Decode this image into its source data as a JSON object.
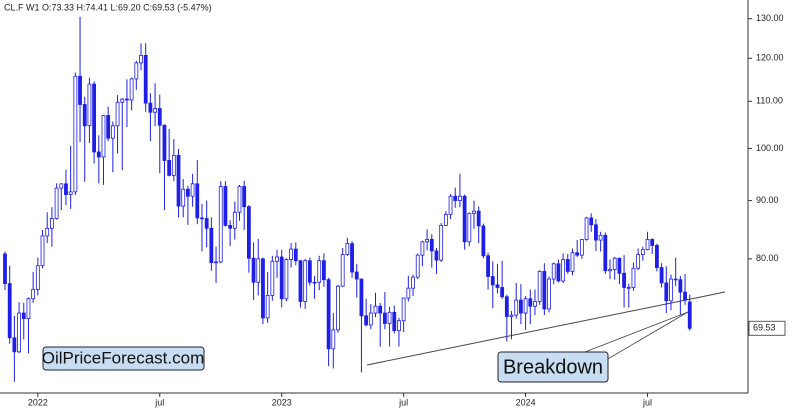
{
  "chart_data": {
    "type": "candlestick",
    "legend_text": "CL.F  W1  O:73.33  H:74.41  L:69.20  C:69.53  (-5.47%)",
    "watermark": "OilPriceForecast.com",
    "annotation": "Breakdown",
    "color": "#1f1fe6",
    "log_scale": true,
    "ylim": [
      61,
      135
    ],
    "yticks": [
      {
        "value": 80,
        "label": "80.00"
      },
      {
        "value": 90,
        "label": "90.00"
      },
      {
        "value": 100,
        "label": "100.00"
      },
      {
        "value": 110,
        "label": "110.00"
      },
      {
        "value": 120,
        "label": "120.00"
      },
      {
        "value": 130,
        "label": "130.00"
      }
    ],
    "categories": [
      null,
      null,
      null,
      null,
      null,
      null,
      null,
      "2022",
      null,
      null,
      null,
      null,
      null,
      null,
      null,
      null,
      null,
      null,
      null,
      null,
      null,
      null,
      null,
      null,
      null,
      null,
      null,
      null,
      null,
      null,
      null,
      null,
      null,
      "jul",
      null,
      null,
      null,
      null,
      null,
      null,
      null,
      null,
      null,
      null,
      null,
      null,
      null,
      null,
      null,
      null,
      null,
      null,
      null,
      null,
      null,
      null,
      null,
      null,
      null,
      "2023",
      null,
      null,
      null,
      null,
      null,
      null,
      null,
      null,
      null,
      null,
      null,
      null,
      null,
      null,
      null,
      null,
      null,
      null,
      null,
      null,
      null,
      null,
      null,
      null,
      null,
      "jul",
      null,
      null,
      null,
      null,
      null,
      null,
      null,
      null,
      null,
      null,
      null,
      null,
      null,
      null,
      null,
      null,
      null,
      null,
      null,
      null,
      null,
      null,
      null,
      null,
      null,
      "2024",
      null,
      null,
      null,
      null,
      null,
      null,
      null,
      null,
      null,
      null,
      null,
      null,
      null,
      null,
      null,
      null,
      null,
      null,
      null,
      null,
      null,
      null,
      null,
      null,
      null,
      "jul",
      null,
      null,
      null,
      null,
      null,
      null,
      null,
      null,
      null
    ],
    "open": [
      80.8,
      76.1,
      68.2,
      66.3,
      71.7,
      70.9,
      73.8,
      75.2,
      78.9,
      83.8,
      85.1,
      86.8,
      92.3,
      93.1,
      91.1,
      91.6,
      115.7,
      109.3,
      104.7,
      113.9,
      99.3,
      98.3,
      106.9,
      102.1,
      104.7,
      109.8,
      110.5,
      110.3,
      115.1,
      118.9,
      120.7,
      109.6,
      107.6,
      108.4,
      104.8,
      97.6,
      94.7,
      98.6,
      89.0,
      92.1,
      90.8,
      93.1,
      86.9,
      86.8,
      85.1,
      79.4,
      79.5,
      92.6,
      85.6,
      85.1,
      87.9,
      92.6,
      88.9,
      80.1,
      76.3,
      80.0,
      71.0,
      74.3,
      79.6,
      80.3,
      73.8,
      79.9,
      81.6,
      79.7,
      73.4,
      79.7,
      76.3,
      76.3,
      79.7,
      76.7,
      66.7,
      69.3,
      75.7,
      80.7,
      82.5,
      77.9,
      76.8,
      71.3,
      70.0,
      71.7,
      72.7,
      71.7,
      70.2,
      71.8,
      69.2,
      70.6,
      73.9,
      75.4,
      77.1,
      80.6,
      82.8,
      83.2,
      81.3,
      79.8,
      85.6,
      87.5,
      90.8,
      90.0,
      90.8,
      82.8,
      87.7,
      88.1,
      85.5,
      80.5,
      77.2,
      75.9,
      75.5,
      74.1,
      71.2,
      71.4,
      73.6,
      71.7,
      73.8,
      72.7,
      73.4,
      78.0,
      72.3,
      76.8,
      79.2,
      76.5,
      79.9,
      78.0,
      81.0,
      80.6,
      83.2,
      86.9,
      85.7,
      83.1,
      83.9,
      78.1,
      78.3,
      80.1,
      77.7,
      75.5,
      75.5,
      78.5,
      80.7,
      81.5,
      83.2,
      82.2,
      78.6,
      76.2,
      73.5,
      76.8,
      76.7,
      74.8,
      73.33
    ],
    "high": [
      81.2,
      78.9,
      71.3,
      73.3,
      73.2,
      74.0,
      77.9,
      80.2,
      84.8,
      87.9,
      88.8,
      93.2,
      93.2,
      95.8,
      100.5,
      116.6,
      130.5,
      111.0,
      115.4,
      114.5,
      102.7,
      107.0,
      108.8,
      105.6,
      111.4,
      110.7,
      115.0,
      115.4,
      119.4,
      123.7,
      123.7,
      111.8,
      114.1,
      111.5,
      105.0,
      104.0,
      101.9,
      99.9,
      94.0,
      92.7,
      95.0,
      97.7,
      89.4,
      90.0,
      87.0,
      82.0,
      93.6,
      93.6,
      86.5,
      89.8,
      92.9,
      93.7,
      89.2,
      82.7,
      83.3,
      80.2,
      77.9,
      80.5,
      81.5,
      81.5,
      80.1,
      82.6,
      82.7,
      79.8,
      80.0,
      80.2,
      77.3,
      80.5,
      80.9,
      77.0,
      71.7,
      75.9,
      81.8,
      83.5,
      82.9,
      79.2,
      76.9,
      73.8,
      73.0,
      74.7,
      73.2,
      74.8,
      72.6,
      72.8,
      71.0,
      74.0,
      77.3,
      77.5,
      80.9,
      83.0,
      84.9,
      84.1,
      81.8,
      86.0,
      88.1,
      91.2,
      92.4,
      95.0,
      91.1,
      87.9,
      90.0,
      88.9,
      85.9,
      81.0,
      79.6,
      79.2,
      79.7,
      74.4,
      72.0,
      76.2,
      76.0,
      74.2,
      75.2,
      75.2,
      78.2,
      79.3,
      77.2,
      79.4,
      79.9,
      80.9,
      80.8,
      81.7,
      83.1,
      83.3,
      87.1,
      87.7,
      86.7,
      84.5,
      84.4,
      79.9,
      80.3,
      80.2,
      80.6,
      76.1,
      79.4,
      81.7,
      82.0,
      84.5,
      83.4,
      82.5,
      79.3,
      78.8,
      77.5,
      80.2,
      77.3,
      77.6,
      74.41
    ],
    "low": [
      75.1,
      67.4,
      62.4,
      66.1,
      68.0,
      66.1,
      73.2,
      74.3,
      78.5,
      82.6,
      82.0,
      86.6,
      88.3,
      89.2,
      88.5,
      91.0,
      101.3,
      93.5,
      101.1,
      97.0,
      93.2,
      92.9,
      101.5,
      95.3,
      99.0,
      95.7,
      104.4,
      108.0,
      112.6,
      117.1,
      107.7,
      101.5,
      104.6,
      95.1,
      88.3,
      94.5,
      93.6,
      87.0,
      87.0,
      85.7,
      88.9,
      85.8,
      81.2,
      81.9,
      78.1,
      76.2,
      79.3,
      85.4,
      82.1,
      83.2,
      86.4,
      84.8,
      77.8,
      73.6,
      74.3,
      70.1,
      70.3,
      73.5,
      77.0,
      72.5,
      73.4,
      78.6,
      79.0,
      72.5,
      72.3,
      75.8,
      73.8,
      75.1,
      75.6,
      64.4,
      64.1,
      68.9,
      75.6,
      80.5,
      77.0,
      74.0,
      63.6,
      69.8,
      69.4,
      71.1,
      67.0,
      69.4,
      67.0,
      68.8,
      67.0,
      69.0,
      73.4,
      74.2,
      76.8,
      78.8,
      81.4,
      78.6,
      77.6,
      79.5,
      85.5,
      86.7,
      88.7,
      88.8,
      81.5,
      82.1,
      85.0,
      82.6,
      80.1,
      75.2,
      72.4,
      74.6,
      73.8,
      67.7,
      68.0,
      70.9,
      70.1,
      69.3,
      70.1,
      71.4,
      72.9,
      71.4,
      71.8,
      76.0,
      76.3,
      76.2,
      77.6,
      77.4,
      80.3,
      80.0,
      83.0,
      84.5,
      81.3,
      81.2,
      77.6,
      76.8,
      76.7,
      76.0,
      72.5,
      72.5,
      75.0,
      78.2,
      79.7,
      81.4,
      80.8,
      78.0,
      75.5,
      71.7,
      72.1,
      75.7,
      71.5,
      72.9,
      69.2
    ],
    "close": [
      76.1,
      68.2,
      66.3,
      71.7,
      70.9,
      73.8,
      75.2,
      78.9,
      83.8,
      85.1,
      86.8,
      92.3,
      93.1,
      91.1,
      91.6,
      115.7,
      109.3,
      104.7,
      113.9,
      99.3,
      98.3,
      106.9,
      102.1,
      104.7,
      109.8,
      110.5,
      110.3,
      115.1,
      118.9,
      120.7,
      109.6,
      107.6,
      108.4,
      104.8,
      97.6,
      94.7,
      98.6,
      89.0,
      92.1,
      90.8,
      93.1,
      86.9,
      86.8,
      85.1,
      79.4,
      79.5,
      92.6,
      85.6,
      85.1,
      87.9,
      92.6,
      88.9,
      80.1,
      76.3,
      80.0,
      71.0,
      74.3,
      79.6,
      80.3,
      73.8,
      79.9,
      81.6,
      79.7,
      73.4,
      79.7,
      76.3,
      76.3,
      79.7,
      76.7,
      66.7,
      69.3,
      75.7,
      80.7,
      82.5,
      77.9,
      76.8,
      71.3,
      70.0,
      71.7,
      72.7,
      71.7,
      70.2,
      71.8,
      69.2,
      70.6,
      73.9,
      75.4,
      77.1,
      80.6,
      82.8,
      83.2,
      81.3,
      79.8,
      85.6,
      87.5,
      90.8,
      90.0,
      90.8,
      82.8,
      87.7,
      88.1,
      85.5,
      80.5,
      77.2,
      75.9,
      75.5,
      74.1,
      71.2,
      71.4,
      73.6,
      71.7,
      73.8,
      72.7,
      73.4,
      78.0,
      72.3,
      76.8,
      79.2,
      76.5,
      79.9,
      78.0,
      81.0,
      80.6,
      83.2,
      86.9,
      85.7,
      83.1,
      83.9,
      78.1,
      78.3,
      80.1,
      77.7,
      75.5,
      75.5,
      78.5,
      80.7,
      81.5,
      83.2,
      82.2,
      78.6,
      76.2,
      73.5,
      76.8,
      76.7,
      74.8,
      73.6,
      69.53
    ]
  }
}
